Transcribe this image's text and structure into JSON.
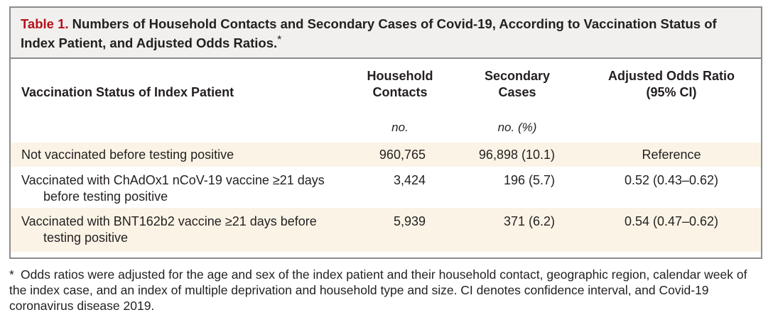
{
  "caption": {
    "label": "Table 1.",
    "title": "Numbers of Household Contacts and Secondary Cases of Covid-19, According to Vaccination Status of Index Patient, and Adjusted Odds Ratios.",
    "marker": "*"
  },
  "columns": [
    {
      "header": "Vaccination Status of Index Patient",
      "unit": ""
    },
    {
      "header_line1": "Household",
      "header_line2": "Contacts",
      "unit": "no."
    },
    {
      "header_line1": "Secondary",
      "header_line2": "Cases",
      "unit": "no. (%)"
    },
    {
      "header_line1": "Adjusted Odds Ratio",
      "header_line2": "(95% CI)",
      "unit": ""
    }
  ],
  "rows": [
    {
      "status": "Not vaccinated before testing positive",
      "contacts": "960,765",
      "cases": "96,898 (10.1)",
      "odds_ratio": "Reference"
    },
    {
      "status": "Vaccinated with ChAdOx1 nCoV-19 vaccine ≥21 days before testing positive",
      "contacts": "3,424",
      "cases": "196 (5.7)",
      "odds_ratio": "0.52 (0.43–0.62)"
    },
    {
      "status": "Vaccinated with BNT162b2 vaccine ≥21 days before testing positive",
      "contacts": "5,939",
      "cases": "371 (6.2)",
      "odds_ratio": "0.54 (0.47–0.62)"
    }
  ],
  "footnote": {
    "marker": "*",
    "text": "Odds ratios were adjusted for the age and sex of the index patient and their household contact, geographic region, calendar week of the index case, and an index of multiple deprivation and household type and size. CI denotes confidence interval, and Covid-19 coronavirus disease 2019."
  },
  "colors": {
    "caption_label": "#b5121b",
    "caption_bg": "#f1f0ee",
    "shaded_row": "#fbf4e6",
    "border": "#8c8c8c"
  }
}
